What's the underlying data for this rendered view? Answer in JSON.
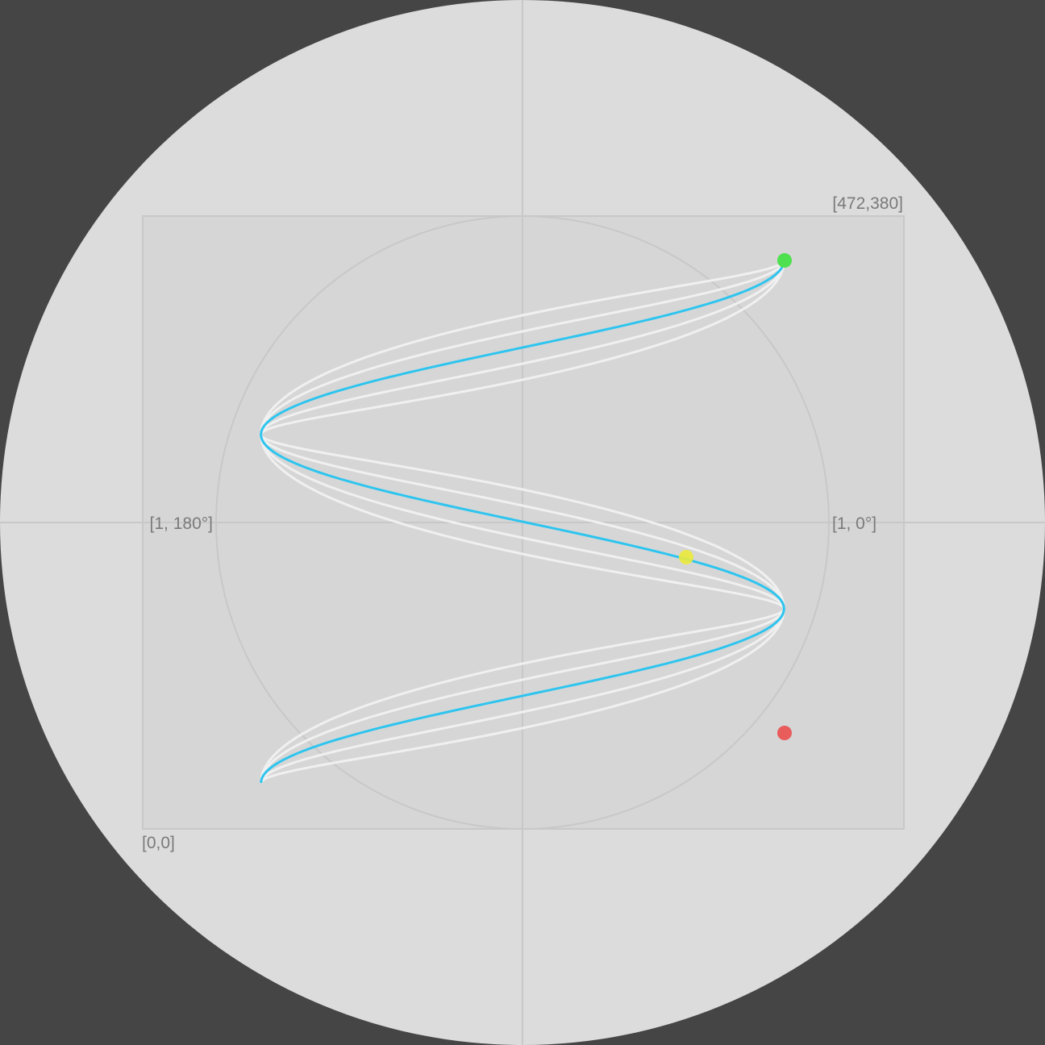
{
  "labels": {
    "top_right_corner": "[472,380]",
    "bottom_left_corner": "[0,0]",
    "left_axis": "[1, 180°]",
    "right_axis": "[1, 0°]"
  },
  "colors": {
    "background": "#454545",
    "disc": "#dcdcdc",
    "box": "#d6d6d6",
    "grid": "#c8c8c8",
    "trace_old": "#f0f0f0",
    "trace_active": "#2ec4ee",
    "start_marker": "#4ee04e",
    "end_marker": "#e85c5c",
    "cursor_marker": "#eaea3c"
  },
  "bounds": {
    "x": [
      0,
      472
    ],
    "y": [
      0,
      380
    ]
  },
  "trace": {
    "description_none": "",
    "old_curve_count": 5,
    "active_curve_index": 2
  }
}
